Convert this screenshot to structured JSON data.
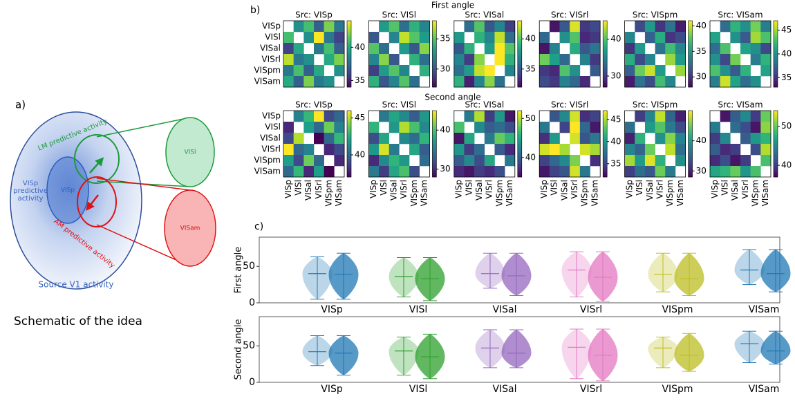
{
  "panel_labels": [
    "a)",
    "b)",
    "c)"
  ],
  "schematic": {
    "lm_text": "LM predictive activity",
    "visl_text": "VISl",
    "visp_pred_text": "VISp predictive activity",
    "visp_text": "VISp",
    "am_text": "AM predictive activity",
    "visam_text": "VISam",
    "source_text": "Source V1 activity",
    "caption": "Schematic of the idea"
  },
  "heatmap_row_titles": [
    "First angle",
    "Second angle"
  ],
  "matrix_labels": [
    "VISp",
    "VISl",
    "VISal",
    "VISrl",
    "VISpm",
    "VISam"
  ],
  "chart_data": [
    {
      "type": "heatmap",
      "title": "Src: VISp",
      "clim": [
        34,
        44
      ],
      "cticks": [
        35,
        40
      ],
      "values": [
        [
          null,
          39,
          41,
          37,
          42,
          38
        ],
        [
          41,
          null,
          39,
          44,
          38,
          36
        ],
        [
          36,
          40,
          null,
          38,
          41,
          37
        ],
        [
          43,
          38,
          39,
          null,
          40,
          42
        ],
        [
          38,
          41,
          37,
          40,
          null,
          39
        ],
        [
          40,
          37,
          42,
          38,
          39,
          null
        ]
      ]
    },
    {
      "type": "heatmap",
      "title": "Src: VISl",
      "clim": [
        27,
        38
      ],
      "cticks": [
        30,
        35
      ],
      "values": [
        [
          null,
          33,
          35,
          31,
          34,
          32
        ],
        [
          30,
          null,
          32,
          37,
          35,
          33
        ],
        [
          35,
          31,
          null,
          33,
          30,
          36
        ],
        [
          32,
          36,
          30,
          null,
          34,
          31
        ],
        [
          29,
          33,
          35,
          32,
          null,
          34
        ],
        [
          34,
          30,
          32,
          35,
          31,
          null
        ]
      ]
    },
    {
      "type": "heatmap",
      "title": "Src: VISal",
      "clim": [
        32,
        43
      ],
      "cticks": [
        35,
        40
      ],
      "values": [
        [
          null,
          36,
          40,
          35,
          37,
          34
        ],
        [
          38,
          null,
          39,
          37,
          42,
          36
        ],
        [
          35,
          39,
          null,
          38,
          43,
          40
        ],
        [
          37,
          34,
          41,
          null,
          43,
          39
        ],
        [
          36,
          38,
          42,
          43,
          null,
          37
        ],
        [
          39,
          33,
          37,
          41,
          36,
          null
        ]
      ]
    },
    {
      "type": "heatmap",
      "title": "Src: VISrl",
      "clim": [
        27,
        45
      ],
      "cticks": [
        30,
        40
      ],
      "values": [
        [
          null,
          28,
          32,
          44,
          30,
          31
        ],
        [
          33,
          null,
          36,
          40,
          29,
          30
        ],
        [
          28,
          35,
          null,
          38,
          32,
          34
        ],
        [
          41,
          37,
          33,
          null,
          35,
          30
        ],
        [
          30,
          29,
          40,
          36,
          null,
          32
        ],
        [
          31,
          30,
          35,
          33,
          29,
          null
        ]
      ]
    },
    {
      "type": "heatmap",
      "title": "Src: VISpm",
      "clim": [
        28,
        41
      ],
      "cticks": [
        30,
        35,
        40
      ],
      "values": [
        [
          null,
          31,
          35,
          30,
          33,
          29
        ],
        [
          34,
          null,
          32,
          36,
          30,
          31
        ],
        [
          30,
          35,
          null,
          33,
          37,
          34
        ],
        [
          36,
          31,
          34,
          null,
          39,
          35
        ],
        [
          32,
          38,
          40,
          35,
          null,
          39
        ],
        [
          29,
          33,
          31,
          37,
          34,
          null
        ]
      ]
    },
    {
      "type": "heatmap",
      "title": "Src: VISam",
      "clim": [
        33,
        47
      ],
      "cticks": [
        35,
        40,
        45
      ],
      "values": [
        [
          null,
          38,
          42,
          40,
          44,
          39
        ],
        [
          41,
          null,
          40,
          37,
          45,
          43
        ],
        [
          38,
          43,
          null,
          41,
          40,
          36
        ],
        [
          40,
          36,
          44,
          null,
          39,
          42
        ],
        [
          43,
          40,
          37,
          42,
          null,
          41
        ],
        [
          39,
          46,
          41,
          38,
          40,
          null
        ]
      ]
    },
    {
      "type": "heatmap",
      "title": "Src: VISp",
      "clim": [
        37,
        46
      ],
      "cticks": [
        40,
        45
      ],
      "values": [
        [
          null,
          41,
          43,
          46,
          39,
          40
        ],
        [
          38,
          null,
          42,
          40,
          44,
          41
        ],
        [
          39,
          45,
          null,
          37,
          40,
          43
        ],
        [
          46,
          40,
          41,
          null,
          38,
          39
        ],
        [
          42,
          39,
          44,
          40,
          null,
          38
        ],
        [
          40,
          43,
          38,
          42,
          37,
          null
        ]
      ]
    },
    {
      "type": "heatmap",
      "title": "Src: VISl",
      "clim": [
        28,
        45
      ],
      "cticks": [
        30,
        40
      ],
      "values": [
        [
          null,
          35,
          38,
          36,
          33,
          37
        ],
        [
          39,
          null,
          37,
          43,
          40,
          36
        ],
        [
          32,
          38,
          null,
          36,
          34,
          39
        ],
        [
          37,
          44,
          35,
          null,
          38,
          33
        ],
        [
          30,
          36,
          39,
          37,
          null,
          34
        ],
        [
          35,
          31,
          38,
          40,
          32,
          null
        ]
      ]
    },
    {
      "type": "heatmap",
      "title": "Src: VISal",
      "clim": [
        35,
        52
      ],
      "cticks": [
        40,
        50
      ],
      "values": [
        [
          null,
          42,
          50,
          38,
          44,
          36
        ],
        [
          47,
          null,
          43,
          40,
          41,
          39
        ],
        [
          36,
          45,
          null,
          42,
          48,
          46
        ],
        [
          44,
          38,
          41,
          null,
          40,
          37
        ],
        [
          40,
          43,
          39,
          45,
          null,
          42
        ],
        [
          37,
          36,
          38,
          37,
          39,
          null
        ]
      ]
    },
    {
      "type": "heatmap",
      "title": "Src: VISrl",
      "clim": [
        32,
        47
      ],
      "cticks": [
        35,
        40,
        45
      ],
      "values": [
        [
          null,
          36,
          39,
          46,
          34,
          35
        ],
        [
          38,
          null,
          35,
          47,
          37,
          33
        ],
        [
          34,
          40,
          null,
          46,
          36,
          38
        ],
        [
          46,
          47,
          45,
          null,
          46,
          45
        ],
        [
          35,
          37,
          39,
          44,
          null,
          34
        ],
        [
          33,
          35,
          36,
          46,
          38,
          null
        ]
      ]
    },
    {
      "type": "heatmap",
      "title": "Src: VISpm",
      "clim": [
        28,
        50
      ],
      "cticks": [
        30,
        40
      ],
      "values": [
        [
          null,
          32,
          38,
          48,
          35,
          30
        ],
        [
          36,
          null,
          40,
          44,
          37,
          33
        ],
        [
          30,
          42,
          null,
          39,
          46,
          38
        ],
        [
          38,
          35,
          45,
          null,
          48,
          36
        ],
        [
          47,
          40,
          49,
          42,
          null,
          39
        ],
        [
          32,
          36,
          34,
          45,
          37,
          null
        ]
      ]
    },
    {
      "type": "heatmap",
      "title": "Src: VISam",
      "clim": [
        37,
        54
      ],
      "cticks": [
        40,
        50
      ],
      "values": [
        [
          null,
          38,
          42,
          45,
          40,
          50
        ],
        [
          44,
          null,
          43,
          41,
          38,
          51
        ],
        [
          40,
          45,
          null,
          42,
          46,
          48
        ],
        [
          42,
          39,
          40,
          null,
          41,
          52
        ],
        [
          39,
          41,
          38,
          40,
          null,
          49
        ],
        [
          47,
          48,
          50,
          46,
          49,
          null
        ]
      ]
    },
    {
      "type": "violin",
      "ylabel": "First angle",
      "ylim": [
        0,
        90
      ],
      "yticks": [
        0,
        50
      ],
      "categories": [
        "VISp",
        "VISl",
        "VISal",
        "VISrl",
        "VISpm",
        "VISam"
      ],
      "colors": [
        "#1f77b4",
        "#2ca02c",
        "#9467bd",
        "#e377c2",
        "#bcbd22",
        "#1f77b4"
      ],
      "series": [
        {
          "min": [
            5,
            8,
            20,
            8,
            15,
            25
          ],
          "max": [
            63,
            62,
            68,
            70,
            68,
            73
          ],
          "mean": [
            40,
            36,
            40,
            45,
            39,
            45
          ]
        },
        {
          "min": [
            5,
            3,
            10,
            2,
            10,
            15
          ],
          "max": [
            68,
            62,
            68,
            70,
            68,
            73
          ],
          "mean": [
            39,
            33,
            37,
            35,
            33,
            40
          ]
        }
      ]
    },
    {
      "type": "violin",
      "ylabel": "Second angle",
      "ylim": [
        0,
        90
      ],
      "yticks": [
        0,
        50
      ],
      "categories": [
        "VISp",
        "VISl",
        "VISal",
        "VISrl",
        "VISpm",
        "VISam"
      ],
      "colors": [
        "#1f77b4",
        "#2ca02c",
        "#9467bd",
        "#e377c2",
        "#bcbd22",
        "#1f77b4"
      ],
      "series": [
        {
          "min": [
            23,
            10,
            20,
            5,
            20,
            27
          ],
          "max": [
            64,
            62,
            72,
            73,
            62,
            70
          ],
          "mean": [
            42,
            43,
            47,
            48,
            47,
            53
          ]
        },
        {
          "min": [
            10,
            5,
            20,
            2,
            15,
            25
          ],
          "max": [
            64,
            66,
            72,
            73,
            67,
            70
          ],
          "mean": [
            40,
            35,
            40,
            37,
            37,
            43
          ]
        }
      ]
    }
  ]
}
